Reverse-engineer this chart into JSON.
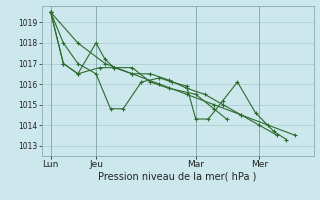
{
  "background_color": "#cce8ec",
  "grid_color": "#aacfd4",
  "line_color": "#2d6a2d",
  "marker_color": "#2d6a2d",
  "xlabel": "Pression niveau de la mer( hPa )",
  "ylim": [
    1012.5,
    1019.8
  ],
  "yticks": [
    1013,
    1014,
    1015,
    1016,
    1017,
    1018,
    1019
  ],
  "xtick_labels": [
    "Lun",
    "Jeu",
    "Mar",
    "Mer"
  ],
  "xtick_positions": [
    0.5,
    3.0,
    8.5,
    12.0
  ],
  "vline_positions": [
    0.5,
    3.0,
    8.5,
    12.0
  ],
  "xlim": [
    0.0,
    15.0
  ],
  "series_x": [
    [
      0.5,
      1.2,
      2.0,
      3.0,
      3.8,
      4.5,
      5.5,
      6.5,
      7.2,
      8.0,
      8.5,
      9.2,
      10.0,
      10.8,
      11.8,
      12.8,
      13.5
    ],
    [
      0.5,
      1.2,
      2.0,
      3.0,
      3.5,
      4.0,
      5.0,
      6.0,
      7.0,
      8.5,
      9.5,
      10.2
    ],
    [
      0.5,
      1.2,
      2.0,
      3.2,
      4.0,
      5.0,
      6.0,
      7.0,
      8.0,
      9.0,
      10.0,
      11.0,
      12.0,
      13.0
    ],
    [
      0.5,
      2.0,
      3.5,
      5.0,
      6.5,
      8.0,
      9.5,
      11.0,
      12.5,
      14.0
    ]
  ],
  "series_y": [
    [
      1019.5,
      1018.0,
      1017.0,
      1016.5,
      1014.8,
      1014.8,
      1016.1,
      1016.3,
      1016.1,
      1015.9,
      1014.3,
      1014.3,
      1015.2,
      1016.1,
      1014.6,
      1013.7,
      1013.3
    ],
    [
      1019.5,
      1017.0,
      1016.5,
      1018.0,
      1017.2,
      1016.8,
      1016.8,
      1016.1,
      1015.8,
      1015.5,
      1014.8,
      1014.3
    ],
    [
      1019.5,
      1017.0,
      1016.5,
      1016.8,
      1016.8,
      1016.5,
      1016.5,
      1016.2,
      1015.8,
      1015.5,
      1015.0,
      1014.5,
      1014.0,
      1013.5
    ],
    [
      1019.5,
      1018.0,
      1017.0,
      1016.5,
      1016.0,
      1015.5,
      1015.0,
      1014.5,
      1014.0,
      1013.5
    ]
  ],
  "ytick_fontsize": 5.5,
  "xtick_fontsize": 6.5,
  "xlabel_fontsize": 7.0
}
